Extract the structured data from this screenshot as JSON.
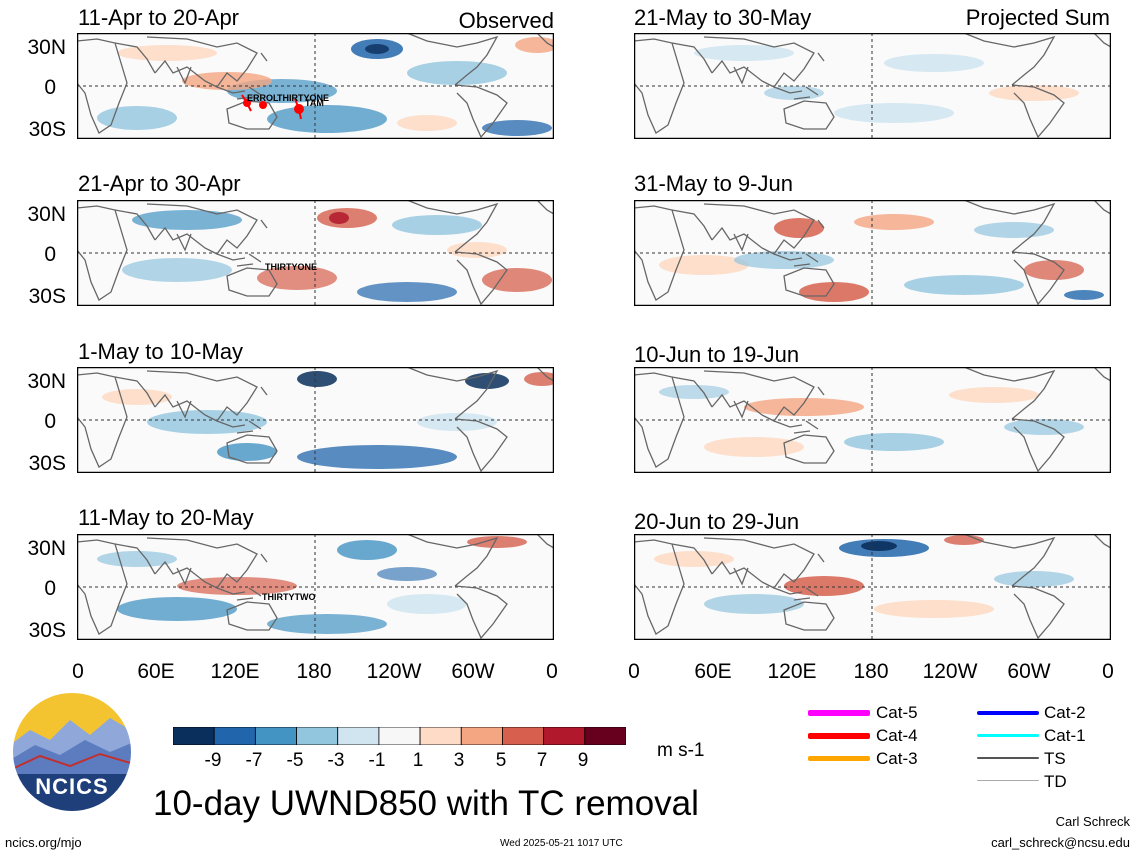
{
  "title": "10-day UWND850 with TC removal",
  "observed_label": "Observed",
  "projected_label": "Projected Sum",
  "units": "m s-1",
  "lat_labels": [
    "30N",
    "0",
    "30S"
  ],
  "lon_labels": [
    "0",
    "60E",
    "120E",
    "180",
    "120W",
    "60W",
    "0"
  ],
  "left_panels": [
    {
      "period": "11-Apr to 20-Apr",
      "storms": [
        "ERROL",
        "THIRTYONE",
        "TAM"
      ]
    },
    {
      "period": "21-Apr to 30-Apr",
      "storms": [
        "THIRTYONE"
      ]
    },
    {
      "period": "1-May to 10-May",
      "storms": []
    },
    {
      "period": "11-May to 20-May",
      "storms": [
        "THIRTYTWO"
      ]
    }
  ],
  "right_panels": [
    {
      "period": "21-May to 30-May"
    },
    {
      "period": "31-May to 9-Jun"
    },
    {
      "period": "10-Jun to 19-Jun"
    },
    {
      "period": "20-Jun to 29-Jun"
    }
  ],
  "colorbar": {
    "ticks": [
      "-9",
      "-7",
      "-5",
      "-3",
      "-1",
      "1",
      "3",
      "5",
      "7",
      "9"
    ],
    "colors": [
      "#0b2f5c",
      "#2166ac",
      "#4393c3",
      "#92c5de",
      "#d1e5f0",
      "#f7f7f7",
      "#fddbc7",
      "#f4a582",
      "#d6604d",
      "#b2182b",
      "#67001f"
    ]
  },
  "tc_legend": [
    {
      "label": "Cat-5",
      "color": "#ff00ff"
    },
    {
      "label": "Cat-4",
      "color": "#ff0000"
    },
    {
      "label": "Cat-3",
      "color": "#ffa500"
    },
    {
      "label": "Cat-2",
      "color": "#0000ff"
    },
    {
      "label": "Cat-1",
      "color": "#00ffff"
    },
    {
      "label": "TS",
      "color": "#555555"
    },
    {
      "label": "TD",
      "color": "#aaaaaa"
    }
  ],
  "logo_text": "NCICS",
  "author": "Carl Schreck",
  "email": "carl_schreck@ncsu.edu",
  "site": "ncics.org/mjo",
  "timestamp": "Wed 2025-05-21 1017 UTC"
}
